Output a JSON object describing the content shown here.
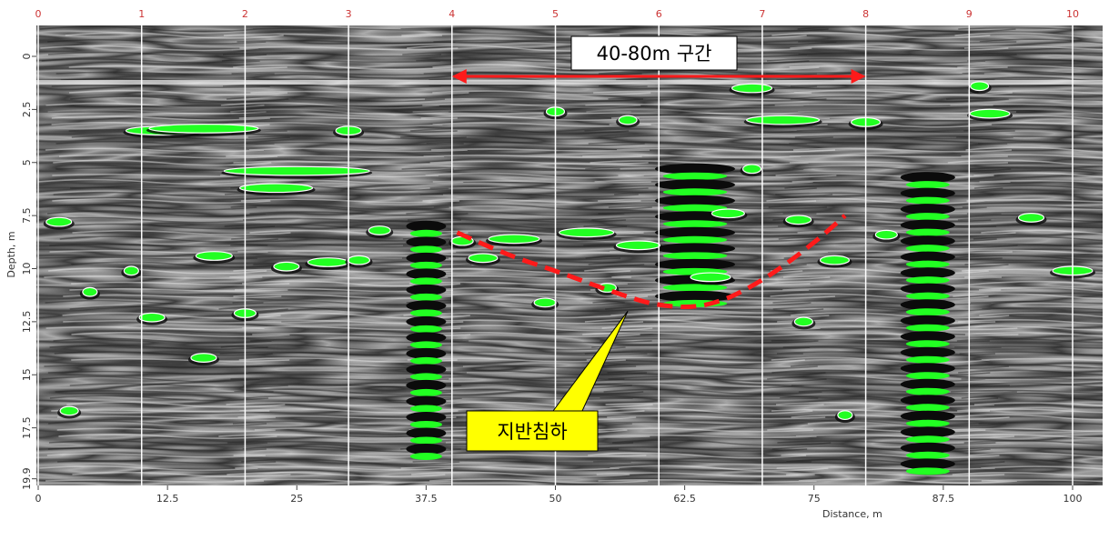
{
  "chart_data": {
    "type": "heatmap",
    "description_kind": "gpr-radargram",
    "xlabel": "Distance, m",
    "ylabel": "Depth, m",
    "xlim": [
      0,
      103
    ],
    "ylim": [
      19.9,
      -1.5
    ],
    "x_ticks": [
      "0",
      "12.5",
      "25",
      "37.5",
      "50",
      "62.5",
      "75",
      "87.5",
      "100"
    ],
    "x_tick_values": [
      0,
      12.5,
      25,
      37.5,
      50,
      62.5,
      75,
      87.5,
      100
    ],
    "y_ticks": [
      "0",
      "2.5",
      "5",
      "7.5",
      "10",
      "12.5",
      "15",
      "17.5",
      "19.9"
    ],
    "y_tick_values": [
      0,
      2.5,
      5,
      7.5,
      10,
      12.5,
      15,
      17.5,
      19.9
    ],
    "markers": [
      {
        "label": "0",
        "x": 0
      },
      {
        "label": "1",
        "x": 10
      },
      {
        "label": "2",
        "x": 20
      },
      {
        "label": "3",
        "x": 30
      },
      {
        "label": "4",
        "x": 40
      },
      {
        "label": "5",
        "x": 50
      },
      {
        "label": "6",
        "x": 60
      },
      {
        "label": "7",
        "x": 70
      },
      {
        "label": "8",
        "x": 80
      },
      {
        "label": "9",
        "x": 90
      },
      {
        "label": "10",
        "x": 100
      }
    ],
    "section": {
      "label": "40-80m 구간",
      "x_start": 40,
      "x_end": 80
    },
    "subsidence": {
      "label": "지반침하",
      "curve": [
        [
          40.5,
          8.3
        ],
        [
          45,
          9.3
        ],
        [
          50,
          10.1
        ],
        [
          55,
          11
        ],
        [
          60,
          11.8
        ],
        [
          65,
          11.8
        ],
        [
          70,
          10.6
        ],
        [
          75,
          8.8
        ],
        [
          78,
          7.5
        ]
      ],
      "pointer": [
        57,
        12
      ]
    },
    "grid": false,
    "colors": {
      "reflector": "#22ff22",
      "marker_line": "#ffffff",
      "annotation": "#ff1a1a",
      "callout_fill": "#ffff00",
      "tick_text": "#333333",
      "marker_text": "#cc3333"
    }
  }
}
